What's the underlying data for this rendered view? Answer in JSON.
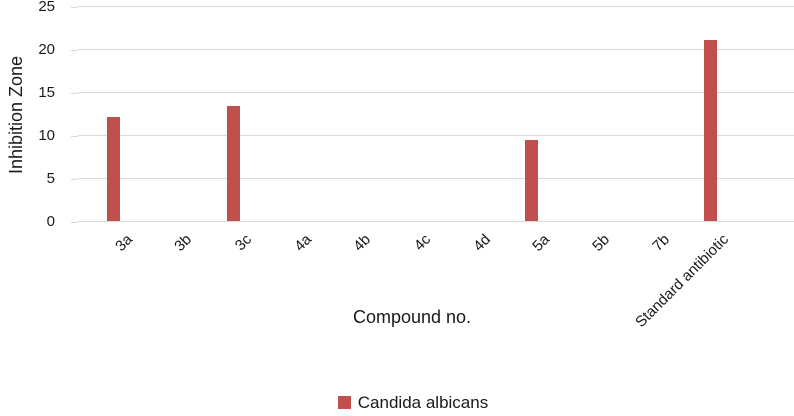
{
  "figure": {
    "legend": {
      "label": "Candida albicans"
    },
    "colors": {
      "bar": "#C0504D",
      "gridline": "#D9D9D9",
      "text": "#1A1A1A",
      "background": "#FFFFFF"
    }
  },
  "chart_data": {
    "type": "bar",
    "categories": [
      "3a",
      "3b",
      "3c",
      "4a",
      "4b",
      "4c",
      "4d",
      "5a",
      "5b",
      "7b",
      "Standard antibiotic"
    ],
    "values": [
      12.1,
      0,
      13.4,
      0,
      0,
      0,
      0,
      9.4,
      0,
      0,
      21
    ],
    "title": "",
    "xlabel": "Compound no.",
    "ylabel": "Inhibition Zone",
    "ylim": [
      0,
      25
    ],
    "yticks": [
      0,
      5,
      10,
      15,
      20,
      25
    ],
    "grid": "horizontal",
    "legend": [
      "Candida albicans"
    ],
    "legend_position": "bottom",
    "bar_color": "#C0504D"
  }
}
